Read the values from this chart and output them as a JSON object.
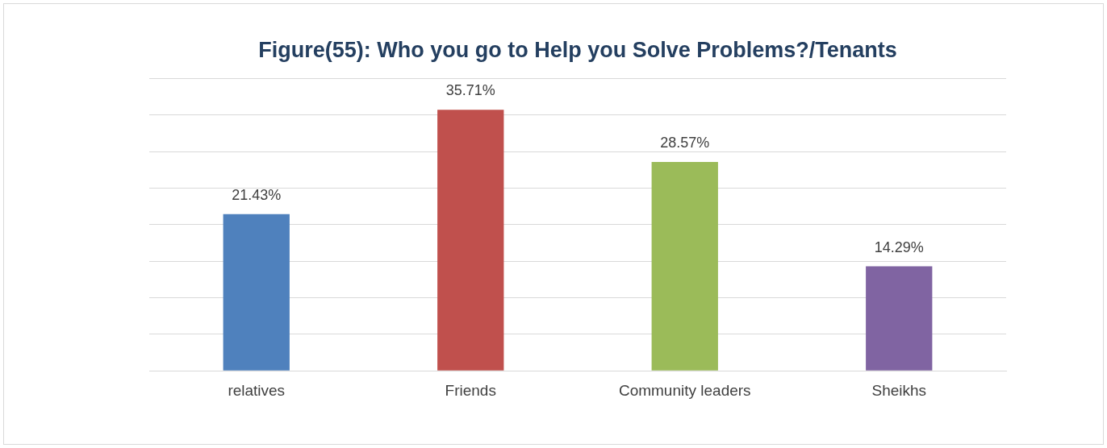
{
  "chart_data": {
    "type": "bar",
    "title": "Figure(55): Who you go to Help you Solve Problems?/Tenants",
    "categories": [
      "relatives",
      "Friends",
      "Community leaders",
      "Sheikhs"
    ],
    "values": [
      21.43,
      35.71,
      28.57,
      14.29
    ],
    "colors": [
      "#4f81bd",
      "#c0504d",
      "#9bbb59",
      "#8064a2"
    ],
    "value_labels": [
      "21.43%",
      "35.71%",
      "28.57%",
      "14.29%"
    ],
    "ylim": [
      0,
      40
    ],
    "yticks": [
      {
        "value": 0,
        "label": null
      },
      {
        "value": 5,
        "label": null
      },
      {
        "value": 10,
        "label": null
      },
      {
        "value": 15,
        "label": null
      },
      {
        "value": 20,
        "label": null
      },
      {
        "value": 25,
        "label": null
      },
      {
        "value": 30,
        "label": null
      },
      {
        "value": 35,
        "label": null
      },
      {
        "value": 40,
        "label": null
      }
    ],
    "grid": "y",
    "tick_labels": "x"
  }
}
